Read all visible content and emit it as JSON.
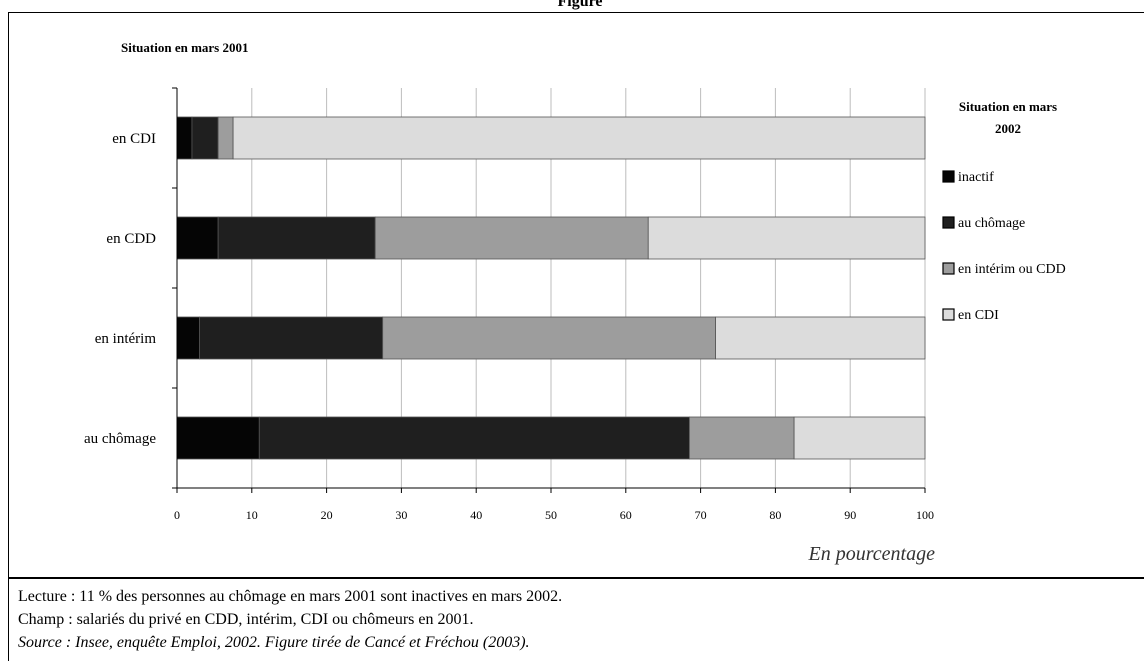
{
  "figure": {
    "title": "Figure"
  },
  "chart_data": {
    "type": "bar",
    "orientation": "horizontal",
    "stacked": true,
    "y_axis_title": "Situation en mars 2001",
    "legend_title": "Situation en mars 2002",
    "x_caption": "En pourcentage",
    "categories": [
      "en CDI",
      "en CDD",
      "en intérim",
      "au chômage"
    ],
    "series": [
      {
        "name": "inactif",
        "color": "#050505",
        "values": [
          2,
          5.5,
          3,
          11
        ]
      },
      {
        "name": "au chômage",
        "color": "#1f1f1f",
        "values": [
          3.5,
          21,
          24.5,
          57.5
        ]
      },
      {
        "name": "en intérim ou CDD",
        "color": "#9d9d9d",
        "values": [
          2,
          36.5,
          44.5,
          14
        ]
      },
      {
        "name": "en CDI",
        "color": "#dcdcdc",
        "values": [
          92.5,
          37,
          28,
          17.5
        ]
      }
    ],
    "xlim": [
      0,
      100
    ],
    "xticks": [
      0,
      10,
      20,
      30,
      40,
      50,
      60,
      70,
      80,
      90,
      100
    ],
    "grid": "vertical",
    "legend_position": "right"
  },
  "notes": {
    "lecture": "Lecture : 11 % des personnes au chômage en mars 2001 sont inactives en mars 2002.",
    "champ": "Champ : salariés du privé en CDD, intérim, CDI ou chômeurs en 2001.",
    "source": "Source : Insee, enquête Emploi, 2002. Figure tirée de Cancé et Fréchou (2003)."
  }
}
